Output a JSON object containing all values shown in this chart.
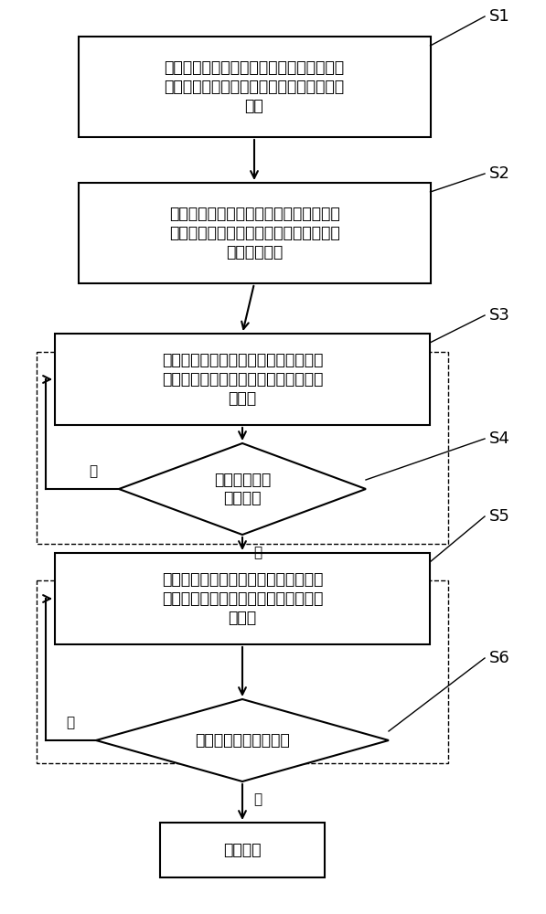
{
  "bg_color": "#ffffff",
  "box_edge_color": "#000000",
  "arrow_color": "#000000",
  "text_color": "#000000",
  "font_size": 12.5,
  "small_font_size": 11,
  "label_font_size": 13,
  "s1_text": "获取电动车的最高限速，根据电动车的最高\n限速设定给定速度的第一加加速度和第二加\n加速",
  "s2_text": "从电动车转把获取目标速度，根据目标速\n度设置第一加加速度和第二加加速切换的\n第一实时转速",
  "s3_text": "以第一加加速度计算给定速度的加速度\n和给定速度，并记录第一加加速度的工\n作时长",
  "s4_text": "实时转速大于\n切换转速",
  "s5_text": "记录第一加加速度的工作总时长，以第\n二加加速度计算给定速度的加速度和给\n定速度",
  "s6_text": "给定转速等于目标转速",
  "end_text": "结束加速",
  "yes_label": "是",
  "no_label": "否",
  "s1_label": "S1",
  "s2_label": "S2",
  "s3_label": "S3",
  "s4_label": "S4",
  "s5_label": "S5",
  "s6_label": "S6"
}
